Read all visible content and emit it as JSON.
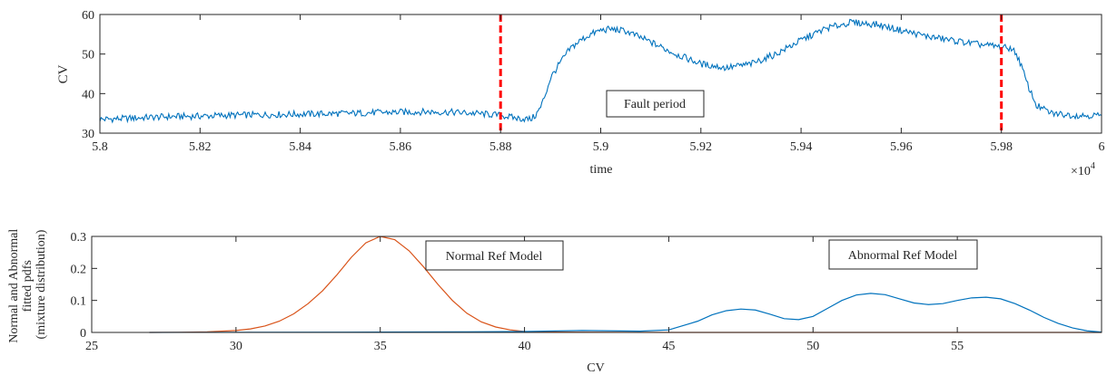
{
  "chart_data": [
    {
      "type": "line",
      "xlabel": "time",
      "ylabel": "CV",
      "xlim": [
        58000,
        60000
      ],
      "ylim": [
        30,
        60
      ],
      "x_exponent_label": "×10",
      "x_exponent_power": "4",
      "xticks": [
        58000,
        58200,
        58400,
        58600,
        58800,
        59000,
        59200,
        59400,
        59600,
        59800,
        60000
      ],
      "xtick_labels": [
        "5.8",
        "5.82",
        "5.84",
        "5.86",
        "5.88",
        "5.9",
        "5.92",
        "5.94",
        "5.96",
        "5.98",
        "6"
      ],
      "yticks": [
        30,
        40,
        50,
        60
      ],
      "ytick_labels": [
        "30",
        "40",
        "50",
        "60"
      ],
      "series": [
        {
          "color": "#0072BD",
          "x": [
            58000,
            58050,
            58100,
            58150,
            58200,
            58250,
            58300,
            58350,
            58400,
            58450,
            58500,
            58550,
            58600,
            58650,
            58700,
            58750,
            58800,
            58830,
            58860,
            58870,
            58880,
            58890,
            58900,
            58920,
            58940,
            58960,
            58980,
            59000,
            59020,
            59050,
            59100,
            59150,
            59200,
            59250,
            59300,
            59350,
            59400,
            59450,
            59500,
            59550,
            59600,
            59650,
            59700,
            59750,
            59800,
            59810,
            59820,
            59830,
            59840,
            59850,
            59870,
            59900,
            59950,
            60000
          ],
          "y": [
            33.5,
            33.7,
            34.0,
            34.2,
            34.3,
            34.5,
            34.6,
            34.7,
            34.8,
            34.9,
            35.0,
            35.2,
            35.3,
            35.4,
            35.3,
            35.0,
            34.5,
            33.8,
            33.5,
            34.5,
            36.5,
            40.0,
            44.0,
            48.0,
            51.5,
            53.5,
            55.0,
            56.0,
            56.3,
            55.8,
            53.0,
            50.0,
            47.5,
            46.5,
            47.5,
            50.0,
            53.5,
            56.5,
            58.0,
            57.5,
            56.0,
            54.5,
            53.5,
            52.5,
            51.8,
            51.5,
            51.5,
            50.0,
            47.0,
            43.0,
            37.0,
            35.0,
            34.5,
            34.5
          ]
        }
      ],
      "markers": [
        {
          "x": 58800,
          "color": "#FF0000",
          "style": "dashed"
        },
        {
          "x": 59800,
          "color": "#FF0000",
          "style": "dashed"
        }
      ],
      "annotation": "Fault period",
      "grid": false
    },
    {
      "type": "line",
      "xlabel": "CV",
      "ylabel_lines": [
        "Normal and Abnormal",
        "fitted pdfs",
        "(mixture distribution)"
      ],
      "xlim": [
        25,
        60
      ],
      "ylim": [
        0,
        0.3
      ],
      "xticks": [
        25,
        30,
        35,
        40,
        45,
        50,
        55
      ],
      "xtick_labels": [
        "25",
        "30",
        "35",
        "40",
        "45",
        "50",
        "55"
      ],
      "yticks": [
        0,
        0.1,
        0.2,
        0.3
      ],
      "ytick_labels": [
        "0",
        "0.1",
        "0.2",
        "0.3"
      ],
      "series": [
        {
          "label": "Normal Ref Model",
          "color": "#D95319",
          "x": [
            27,
            28,
            29,
            30,
            30.5,
            31,
            31.5,
            32,
            32.5,
            33,
            33.5,
            34,
            34.5,
            35,
            35.5,
            36,
            36.5,
            37,
            37.5,
            38,
            38.5,
            39,
            39.5,
            40,
            41,
            45,
            50,
            55,
            60
          ],
          "y": [
            0.0,
            0.0005,
            0.002,
            0.006,
            0.011,
            0.02,
            0.035,
            0.058,
            0.09,
            0.13,
            0.18,
            0.235,
            0.28,
            0.3,
            0.29,
            0.255,
            0.205,
            0.15,
            0.1,
            0.06,
            0.033,
            0.017,
            0.008,
            0.003,
            0.001,
            0.0,
            0.0,
            0.0,
            0.0
          ]
        },
        {
          "label": "Abnormal Ref Model",
          "color": "#0072BD",
          "x": [
            27,
            30,
            35,
            38,
            40,
            42,
            44,
            45,
            46,
            46.5,
            47,
            47.5,
            48,
            48.5,
            49,
            49.5,
            50,
            50.5,
            51,
            51.5,
            52,
            52.5,
            53,
            53.5,
            54,
            54.5,
            55,
            55.5,
            56,
            56.5,
            57,
            57.5,
            58,
            58.5,
            59,
            59.5,
            60
          ],
          "y": [
            0.0,
            0.0005,
            0.001,
            0.002,
            0.003,
            0.006,
            0.004,
            0.008,
            0.035,
            0.055,
            0.068,
            0.073,
            0.07,
            0.057,
            0.043,
            0.04,
            0.05,
            0.075,
            0.1,
            0.117,
            0.122,
            0.118,
            0.105,
            0.092,
            0.087,
            0.09,
            0.1,
            0.108,
            0.11,
            0.105,
            0.09,
            0.07,
            0.047,
            0.028,
            0.014,
            0.005,
            0.001
          ]
        }
      ],
      "annotations": [
        "Normal Ref Model",
        "Abnormal Ref Model"
      ],
      "grid": false
    }
  ]
}
